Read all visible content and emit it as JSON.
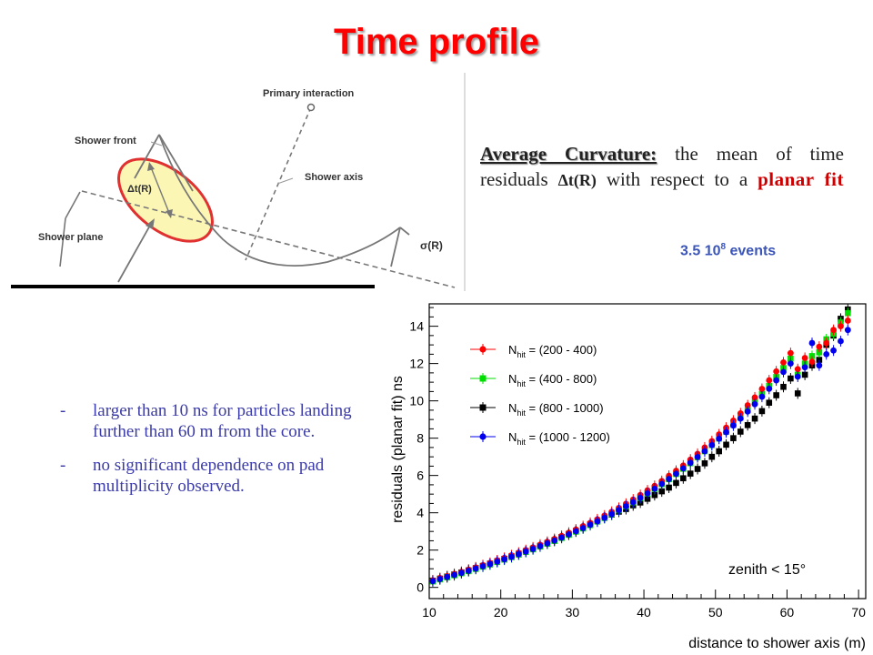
{
  "title": "Time profile",
  "diagram": {
    "labels": {
      "primary_interaction": "Primary interaction",
      "shower_front": "Shower front",
      "shower_axis": "Shower axis",
      "shower_plane": "Shower plane",
      "delta_t": "Δt(R)",
      "sigma": "σ(R)"
    },
    "highlight_color": "#e03030"
  },
  "curvature": {
    "heading": "Average Curvature:",
    "text_1": " the mean of time residuals ",
    "delta": "Δt(R)",
    "text_2": " with respect to a ",
    "planar_fit": "planar fit"
  },
  "events": {
    "prefix": "3.5 10",
    "exponent": "8",
    "suffix": " events"
  },
  "bullets": [
    "larger than 10 ns for particles landing further than 60 m from the core.",
    "no significant  dependence on pad multiplicity  observed."
  ],
  "chart_data": {
    "type": "scatter",
    "xlabel": "distance to shower axis (m)",
    "ylabel": "residuals (planar fit) ns",
    "xlim": [
      10,
      71
    ],
    "ylim": [
      -0.6,
      15.2
    ],
    "x_ticks": [
      10,
      20,
      30,
      40,
      50,
      60,
      70
    ],
    "y_ticks": [
      0,
      2,
      4,
      6,
      8,
      10,
      12,
      14
    ],
    "annotation": "zenith < 15°",
    "legend_position": "top-left",
    "series": [
      {
        "name": "N_hit = (200 - 400)",
        "label_main": "N",
        "label_sub": "hit",
        "label_range": " = (200 - 400)",
        "color": "#ff0000",
        "marker": "circle",
        "points": [
          [
            10.5,
            0.38
          ],
          [
            11.5,
            0.5
          ],
          [
            12.5,
            0.6
          ],
          [
            13.5,
            0.72
          ],
          [
            14.5,
            0.83
          ],
          [
            15.5,
            0.95
          ],
          [
            16.5,
            1.07
          ],
          [
            17.5,
            1.19
          ],
          [
            18.5,
            1.31
          ],
          [
            19.5,
            1.45
          ],
          [
            20.5,
            1.58
          ],
          [
            21.5,
            1.72
          ],
          [
            22.5,
            1.86
          ],
          [
            23.5,
            2.0
          ],
          [
            24.5,
            2.14
          ],
          [
            25.5,
            2.29
          ],
          [
            26.5,
            2.44
          ],
          [
            27.5,
            2.59
          ],
          [
            28.5,
            2.76
          ],
          [
            29.5,
            2.93
          ],
          [
            30.5,
            3.1
          ],
          [
            31.5,
            3.28
          ],
          [
            32.5,
            3.46
          ],
          [
            33.5,
            3.65
          ],
          [
            34.5,
            3.85
          ],
          [
            35.5,
            4.05
          ],
          [
            36.5,
            4.26
          ],
          [
            37.5,
            4.48
          ],
          [
            38.5,
            4.71
          ],
          [
            39.5,
            4.95
          ],
          [
            40.5,
            5.2
          ],
          [
            41.5,
            5.44
          ],
          [
            42.5,
            5.7
          ],
          [
            43.5,
            5.98
          ],
          [
            44.5,
            6.25
          ],
          [
            45.5,
            6.53
          ],
          [
            46.5,
            6.85
          ],
          [
            47.5,
            7.16
          ],
          [
            48.5,
            7.5
          ],
          [
            49.5,
            7.84
          ],
          [
            50.5,
            8.2
          ],
          [
            51.5,
            8.56
          ],
          [
            52.5,
            8.94
          ],
          [
            53.5,
            9.33
          ],
          [
            54.5,
            9.76
          ],
          [
            55.5,
            10.18
          ],
          [
            56.5,
            10.64
          ],
          [
            57.5,
            11.1
          ],
          [
            58.5,
            11.58
          ],
          [
            59.5,
            12.06
          ],
          [
            60.5,
            12.56
          ],
          [
            61.5,
            11.7
          ],
          [
            62.5,
            12.3
          ],
          [
            63.5,
            12.1
          ],
          [
            64.5,
            12.9
          ],
          [
            65.5,
            13.1
          ],
          [
            66.5,
            13.8
          ],
          [
            67.5,
            14.0
          ],
          [
            68.5,
            14.3
          ]
        ]
      },
      {
        "name": "N_hit = (400 - 800)",
        "label_main": "N",
        "label_sub": "hit",
        "label_range": " = (400 - 800)",
        "color": "#00dd00",
        "marker": "square",
        "points": [
          [
            10.5,
            0.32
          ],
          [
            11.5,
            0.43
          ],
          [
            12.5,
            0.54
          ],
          [
            13.5,
            0.65
          ],
          [
            14.5,
            0.76
          ],
          [
            15.5,
            0.87
          ],
          [
            16.5,
            0.99
          ],
          [
            17.5,
            1.11
          ],
          [
            18.5,
            1.23
          ],
          [
            19.5,
            1.36
          ],
          [
            20.5,
            1.49
          ],
          [
            21.5,
            1.62
          ],
          [
            22.5,
            1.76
          ],
          [
            23.5,
            1.9
          ],
          [
            24.5,
            2.04
          ],
          [
            25.5,
            2.19
          ],
          [
            26.5,
            2.34
          ],
          [
            27.5,
            2.49
          ],
          [
            28.5,
            2.65
          ],
          [
            29.5,
            2.82
          ],
          [
            30.5,
            2.99
          ],
          [
            31.5,
            3.16
          ],
          [
            32.5,
            3.34
          ],
          [
            33.5,
            3.53
          ],
          [
            34.5,
            3.72
          ],
          [
            35.5,
            3.92
          ],
          [
            36.5,
            4.13
          ],
          [
            37.5,
            4.34
          ],
          [
            38.5,
            4.56
          ],
          [
            39.5,
            4.79
          ],
          [
            40.5,
            5.03
          ],
          [
            41.5,
            5.28
          ],
          [
            42.5,
            5.54
          ],
          [
            43.5,
            5.8
          ],
          [
            44.5,
            6.08
          ],
          [
            45.5,
            6.36
          ],
          [
            46.5,
            6.66
          ],
          [
            47.5,
            6.98
          ],
          [
            48.5,
            7.3
          ],
          [
            49.5,
            7.63
          ],
          [
            50.5,
            7.98
          ],
          [
            51.5,
            8.34
          ],
          [
            52.5,
            8.71
          ],
          [
            53.5,
            9.1
          ],
          [
            54.5,
            9.5
          ],
          [
            55.5,
            9.93
          ],
          [
            56.5,
            10.36
          ],
          [
            57.5,
            10.8
          ],
          [
            58.5,
            11.28
          ],
          [
            59.5,
            11.76
          ],
          [
            60.5,
            12.26
          ],
          [
            61.5,
            11.4
          ],
          [
            62.5,
            12.0
          ],
          [
            63.5,
            12.4
          ],
          [
            64.5,
            12.6
          ],
          [
            65.5,
            13.3
          ],
          [
            66.5,
            13.6
          ],
          [
            67.5,
            14.2
          ],
          [
            68.5,
            14.7
          ]
        ]
      },
      {
        "name": "N_hit = (800 - 1000)",
        "label_main": "N",
        "label_sub": "hit",
        "label_range": " = (800 - 1000)",
        "color": "#000000",
        "marker": "square",
        "points": [
          [
            10.5,
            0.36
          ],
          [
            11.5,
            0.47
          ],
          [
            12.5,
            0.58
          ],
          [
            13.5,
            0.69
          ],
          [
            14.5,
            0.8
          ],
          [
            15.5,
            0.91
          ],
          [
            16.5,
            1.03
          ],
          [
            17.5,
            1.15
          ],
          [
            18.5,
            1.27
          ],
          [
            19.5,
            1.4
          ],
          [
            20.5,
            1.53
          ],
          [
            21.5,
            1.66
          ],
          [
            22.5,
            1.8
          ],
          [
            23.5,
            1.94
          ],
          [
            24.5,
            2.08
          ],
          [
            25.5,
            2.23
          ],
          [
            26.5,
            2.38
          ],
          [
            27.5,
            2.53
          ],
          [
            28.5,
            2.7
          ],
          [
            29.5,
            2.86
          ],
          [
            30.5,
            3.03
          ],
          [
            31.5,
            3.2
          ],
          [
            32.5,
            3.38
          ],
          [
            33.5,
            3.56
          ],
          [
            34.5,
            3.74
          ],
          [
            35.5,
            3.9
          ],
          [
            36.5,
            4.06
          ],
          [
            37.5,
            4.2
          ],
          [
            38.5,
            4.4
          ],
          [
            39.5,
            4.55
          ],
          [
            40.5,
            4.75
          ],
          [
            41.5,
            4.95
          ],
          [
            42.5,
            5.15
          ],
          [
            43.5,
            5.35
          ],
          [
            44.5,
            5.6
          ],
          [
            45.5,
            5.85
          ],
          [
            46.5,
            6.1
          ],
          [
            47.5,
            6.35
          ],
          [
            48.5,
            6.65
          ],
          [
            49.5,
            7.0
          ],
          [
            50.5,
            7.3
          ],
          [
            51.5,
            7.65
          ],
          [
            52.5,
            8.0
          ],
          [
            53.5,
            8.35
          ],
          [
            54.5,
            8.7
          ],
          [
            55.5,
            9.05
          ],
          [
            56.5,
            9.45
          ],
          [
            57.5,
            9.9
          ],
          [
            58.5,
            10.3
          ],
          [
            59.5,
            10.75
          ],
          [
            60.5,
            11.2
          ],
          [
            61.5,
            10.4
          ],
          [
            62.5,
            11.4
          ],
          [
            63.5,
            11.9
          ],
          [
            64.5,
            12.2
          ],
          [
            65.5,
            13.0
          ],
          [
            66.5,
            13.5
          ],
          [
            67.5,
            14.4
          ],
          [
            68.5,
            14.9
          ]
        ]
      },
      {
        "name": "N_hit = (1000 - 1200)",
        "label_main": "N",
        "label_sub": "hit",
        "label_range": " = (1000 - 1200)",
        "color": "#0000ee",
        "marker": "circle",
        "points": [
          [
            10.5,
            0.34
          ],
          [
            11.5,
            0.45
          ],
          [
            12.5,
            0.56
          ],
          [
            13.5,
            0.67
          ],
          [
            14.5,
            0.78
          ],
          [
            15.5,
            0.89
          ],
          [
            16.5,
            1.01
          ],
          [
            17.5,
            1.13
          ],
          [
            18.5,
            1.25
          ],
          [
            19.5,
            1.38
          ],
          [
            20.5,
            1.51
          ],
          [
            21.5,
            1.64
          ],
          [
            22.5,
            1.78
          ],
          [
            23.5,
            1.92
          ],
          [
            24.5,
            2.06
          ],
          [
            25.5,
            2.21
          ],
          [
            26.5,
            2.36
          ],
          [
            27.5,
            2.51
          ],
          [
            28.5,
            2.67
          ],
          [
            29.5,
            2.84
          ],
          [
            30.5,
            3.01
          ],
          [
            31.5,
            3.18
          ],
          [
            32.5,
            3.36
          ],
          [
            33.5,
            3.54
          ],
          [
            34.5,
            3.73
          ],
          [
            35.5,
            3.93
          ],
          [
            36.5,
            4.14
          ],
          [
            37.5,
            4.35
          ],
          [
            38.5,
            4.57
          ],
          [
            39.5,
            4.8
          ],
          [
            40.5,
            5.04
          ],
          [
            41.5,
            5.29
          ],
          [
            42.5,
            5.55
          ],
          [
            43.5,
            5.81
          ],
          [
            44.5,
            6.09
          ],
          [
            45.5,
            6.38
          ],
          [
            46.5,
            6.68
          ],
          [
            47.5,
            6.99
          ],
          [
            48.5,
            7.3
          ],
          [
            49.5,
            7.63
          ],
          [
            50.5,
            7.97
          ],
          [
            51.5,
            8.32
          ],
          [
            52.5,
            8.68
          ],
          [
            53.5,
            9.05
          ],
          [
            54.5,
            9.43
          ],
          [
            55.5,
            9.82
          ],
          [
            56.5,
            10.22
          ],
          [
            57.5,
            10.65
          ],
          [
            58.5,
            11.1
          ],
          [
            59.5,
            11.55
          ],
          [
            60.5,
            12.0
          ],
          [
            61.5,
            11.3
          ],
          [
            62.5,
            11.8
          ],
          [
            63.5,
            13.1
          ],
          [
            64.5,
            11.9
          ],
          [
            65.5,
            12.5
          ],
          [
            66.5,
            12.7
          ],
          [
            67.5,
            13.2
          ],
          [
            68.5,
            13.8
          ]
        ]
      }
    ]
  }
}
